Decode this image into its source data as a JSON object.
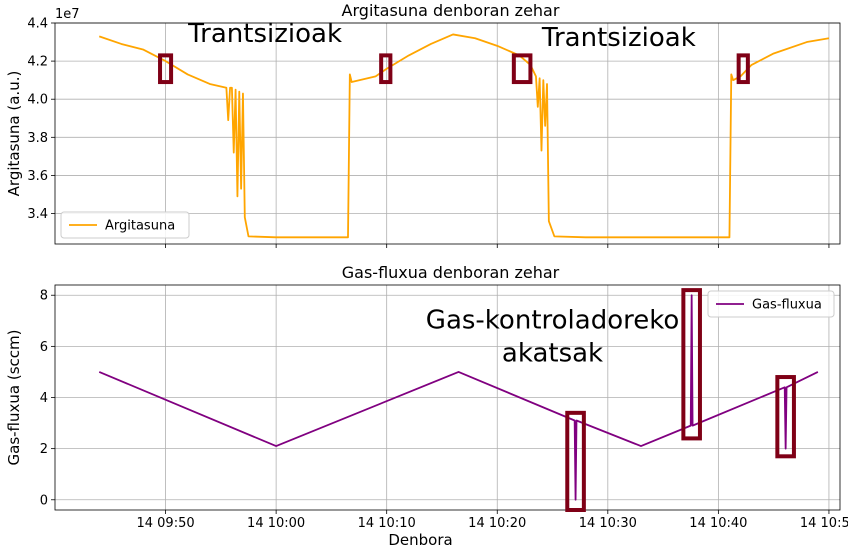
{
  "chart_data": [
    {
      "type": "line",
      "title": "Argitasuna denboran zehar",
      "xlabel": "",
      "ylabel": "Argitasuna (a.u.)",
      "offset_text": "1e7",
      "x_axis": "time",
      "xlim": [
        "14 09:40",
        "14 10:51"
      ],
      "ylim": [
        32400000,
        44000000
      ],
      "yticks": [
        34000000,
        36000000,
        38000000,
        40000000,
        42000000,
        44000000
      ],
      "ytick_labels": [
        "3.4",
        "3.6",
        "3.8",
        "4.0",
        "4.2",
        "4.4"
      ],
      "grid": true,
      "legend_position": "lower-left",
      "series": [
        {
          "name": "Argitasuna",
          "color": "#ffa500",
          "points": [
            [
              "14 09:44:00",
              43300000
            ],
            [
              "14 09:46:00",
              42900000
            ],
            [
              "14 09:48:00",
              42600000
            ],
            [
              "14 09:50:00",
              42000000
            ],
            [
              "14 09:52:00",
              41300000
            ],
            [
              "14 09:54:00",
              40800000
            ],
            [
              "14 09:55:30",
              40600000
            ],
            [
              "14 09:55:40",
              38900000
            ],
            [
              "14 09:55:50",
              40600000
            ],
            [
              "14 09:56:00",
              40600000
            ],
            [
              "14 09:56:10",
              37200000
            ],
            [
              "14 09:56:20",
              40500000
            ],
            [
              "14 09:56:30",
              34900000
            ],
            [
              "14 09:56:40",
              40400000
            ],
            [
              "14 09:56:50",
              35300000
            ],
            [
              "14 09:57:00",
              40300000
            ],
            [
              "14 09:57:10",
              33800000
            ],
            [
              "14 09:57:30",
              32800000
            ],
            [
              "14 10:00:00",
              32750000
            ],
            [
              "14 10:03:00",
              32750000
            ],
            [
              "14 10:06:30",
              32750000
            ],
            [
              "14 10:06:40",
              41300000
            ],
            [
              "14 10:06:50",
              40900000
            ],
            [
              "14 10:09:00",
              41200000
            ],
            [
              "14 10:10:00",
              41600000
            ],
            [
              "14 10:12:00",
              42300000
            ],
            [
              "14 10:14:00",
              42900000
            ],
            [
              "14 10:16:00",
              43400000
            ],
            [
              "14 10:18:00",
              43200000
            ],
            [
              "14 10:20:00",
              42800000
            ],
            [
              "14 10:22:00",
              42300000
            ],
            [
              "14 10:23:00",
              41800000
            ],
            [
              "14 10:23:30",
              41200000
            ],
            [
              "14 10:23:40",
              39600000
            ],
            [
              "14 10:23:50",
              41100000
            ],
            [
              "14 10:24:00",
              37300000
            ],
            [
              "14 10:24:10",
              41000000
            ],
            [
              "14 10:24:20",
              38600000
            ],
            [
              "14 10:24:30",
              40800000
            ],
            [
              "14 10:24:40",
              33600000
            ],
            [
              "14 10:25:10",
              32800000
            ],
            [
              "14 10:28:00",
              32750000
            ],
            [
              "14 10:32:00",
              32750000
            ],
            [
              "14 10:36:00",
              32750000
            ],
            [
              "14 10:41:00",
              32750000
            ],
            [
              "14 10:41:10",
              41300000
            ],
            [
              "14 10:41:20",
              41000000
            ],
            [
              "14 10:42:00",
              41200000
            ],
            [
              "14 10:43:00",
              41800000
            ],
            [
              "14 10:45:00",
              42400000
            ],
            [
              "14 10:48:00",
              43000000
            ],
            [
              "14 10:50:00",
              43200000
            ]
          ]
        }
      ],
      "highlights": [
        {
          "x": [
            "14 09:49:30",
            "14 09:50:30"
          ],
          "y": [
            40900000,
            42300000
          ]
        },
        {
          "x": [
            "14 10:09:30",
            "14 10:10:20"
          ],
          "y": [
            40900000,
            42300000
          ]
        },
        {
          "x": [
            "14 10:21:30",
            "14 10:23:00"
          ],
          "y": [
            40900000,
            42300000
          ]
        },
        {
          "x": [
            "14 10:41:50",
            "14 10:42:40"
          ],
          "y": [
            40900000,
            42300000
          ]
        }
      ],
      "annotations": [
        {
          "text": "Trantsizioak",
          "x": "14 09:59:00",
          "y": 43000000
        },
        {
          "text": "Trantsizioak",
          "x": "14 10:31:00",
          "y": 42800000
        }
      ]
    },
    {
      "type": "line",
      "title": "Gas-fluxua denboran zehar",
      "xlabel": "Denbora",
      "ylabel": "Gas-fluxua (sccm)",
      "x_axis": "time",
      "xlim": [
        "14 09:40",
        "14 10:51"
      ],
      "ylim": [
        -0.4,
        8.4
      ],
      "yticks": [
        0,
        2,
        4,
        6,
        8
      ],
      "ytick_labels": [
        "0",
        "2",
        "4",
        "6",
        "8"
      ],
      "xticks": [
        "14 09:50",
        "14 10:00",
        "14 10:10",
        "14 10:20",
        "14 10:30",
        "14 10:40",
        "14 10:50"
      ],
      "xtick_labels": [
        "14 09:50",
        "14 10:00",
        "14 10:10",
        "14 10:20",
        "14 10:30",
        "14 10:40",
        "14 10:50"
      ],
      "grid": true,
      "legend_position": "top-right",
      "series": [
        {
          "name": "Gas-fluxua",
          "color": "#800080",
          "points": [
            [
              "14 09:44:00",
              5.0
            ],
            [
              "14 10:00:00",
              2.1
            ],
            [
              "14 10:16:30",
              5.0
            ],
            [
              "14 10:27:00",
              3.1
            ],
            [
              "14 10:27:05",
              0.0
            ],
            [
              "14 10:27:10",
              3.1
            ],
            [
              "14 10:33:00",
              2.1
            ],
            [
              "14 10:37:30",
              2.9
            ],
            [
              "14 10:37:35",
              8.0
            ],
            [
              "14 10:37:40",
              2.9
            ],
            [
              "14 10:46:00",
              4.4
            ],
            [
              "14 10:46:05",
              2.0
            ],
            [
              "14 10:46:10",
              4.4
            ],
            [
              "14 10:49:00",
              5.0
            ]
          ]
        }
      ],
      "highlights": [
        {
          "x": [
            "14 10:26:20",
            "14 10:27:50"
          ],
          "y": [
            -0.4,
            3.4
          ]
        },
        {
          "x": [
            "14 10:36:50",
            "14 10:38:20"
          ],
          "y": [
            2.4,
            8.2
          ]
        },
        {
          "x": [
            "14 10:45:20",
            "14 10:46:50"
          ],
          "y": [
            1.7,
            4.8
          ]
        }
      ],
      "annotations": [
        {
          "text": "Gas-kontroladoreko",
          "x": "14 10:25:00",
          "y": 6.7
        },
        {
          "text": "akatsak",
          "x": "14 10:25:00",
          "y": 5.4
        }
      ]
    }
  ]
}
